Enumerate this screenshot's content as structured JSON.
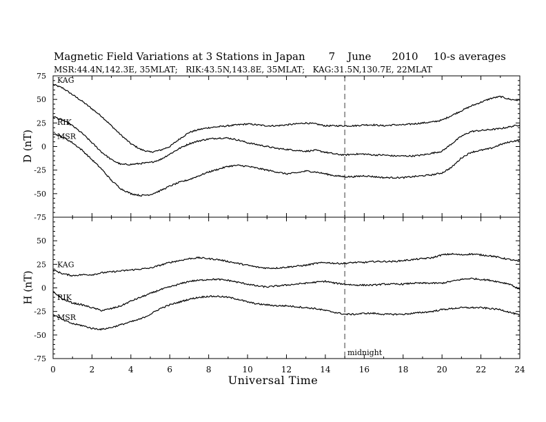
{
  "title": {
    "main": "Magnetic Field Variations at 3 Stations in Japan",
    "date_day": "7",
    "date_month": "June",
    "date_year": "2010",
    "averaging": "10-s averages"
  },
  "subtitle": "MSR:44.4N,142.3E, 35MLAT;   RIK:43.5N,143.8E, 35MLAT;   KAG:31.5N,130.7E, 22MLAT",
  "xlabel": "Universal Time",
  "annotation": "midnight",
  "chart_data": [
    {
      "type": "line",
      "panel": "D",
      "ylabel": "D (nT)",
      "ylim": [
        -75,
        75
      ],
      "yticks": [
        -75,
        -50,
        -25,
        0,
        25,
        50,
        75
      ],
      "xlim": [
        0,
        24
      ],
      "xticks": [
        0,
        2,
        4,
        6,
        8,
        10,
        12,
        14,
        16,
        18,
        20,
        22,
        24
      ],
      "vline_x": 15,
      "x": [
        0,
        0.5,
        1,
        1.5,
        2,
        2.5,
        3,
        3.5,
        4,
        4.5,
        5,
        5.5,
        6,
        6.5,
        7,
        7.5,
        8,
        8.5,
        9,
        9.5,
        10,
        10.5,
        11,
        11.5,
        12,
        12.5,
        13,
        13.5,
        14,
        14.5,
        15,
        15.5,
        16,
        16.5,
        17,
        17.5,
        18,
        18.5,
        19,
        19.5,
        20,
        20.5,
        21,
        21.5,
        22,
        22.5,
        23,
        23.5,
        24
      ],
      "series": [
        {
          "name": "KAG",
          "values": [
            66,
            62,
            55,
            48,
            40,
            32,
            22,
            12,
            3,
            -3,
            -6,
            -4,
            0,
            8,
            15,
            18,
            20,
            21,
            22,
            23,
            24,
            23,
            22,
            22,
            23,
            24,
            25,
            24,
            22,
            22,
            22,
            22,
            23,
            23,
            22,
            23,
            23,
            24,
            25,
            26,
            28,
            33,
            38,
            43,
            47,
            51,
            53,
            50,
            49
          ]
        },
        {
          "name": "RIK",
          "values": [
            32,
            28,
            22,
            14,
            4,
            -6,
            -14,
            -19,
            -19,
            -18,
            -17,
            -14,
            -8,
            -2,
            3,
            6,
            8,
            9,
            9,
            7,
            4,
            2,
            0,
            -2,
            -3,
            -4,
            -5,
            -4,
            -6,
            -8,
            -9,
            -8,
            -8,
            -9,
            -9,
            -10,
            -10,
            -10,
            -9,
            -7,
            -5,
            3,
            11,
            16,
            17,
            18,
            19,
            21,
            23
          ]
        },
        {
          "name": "MSR",
          "values": [
            14,
            10,
            4,
            -4,
            -14,
            -24,
            -36,
            -45,
            -50,
            -52,
            -51,
            -47,
            -42,
            -38,
            -35,
            -31,
            -27,
            -24,
            -21,
            -20,
            -21,
            -23,
            -25,
            -27,
            -29,
            -28,
            -26,
            -27,
            -29,
            -31,
            -32,
            -32,
            -31,
            -32,
            -33,
            -33,
            -33,
            -32,
            -31,
            -30,
            -28,
            -22,
            -12,
            -6,
            -4,
            -2,
            2,
            5,
            7
          ]
        }
      ]
    },
    {
      "type": "line",
      "panel": "H",
      "ylabel": "H (nT)",
      "ylim": [
        -75,
        75
      ],
      "yticks": [
        -75,
        -50,
        -25,
        0,
        25,
        50,
        75
      ],
      "xlim": [
        0,
        24
      ],
      "xticks": [
        0,
        2,
        4,
        6,
        8,
        10,
        12,
        14,
        16,
        18,
        20,
        22,
        24
      ],
      "vline_x": 15,
      "x": [
        0,
        0.5,
        1,
        1.5,
        2,
        2.5,
        3,
        3.5,
        4,
        4.5,
        5,
        5.5,
        6,
        6.5,
        7,
        7.5,
        8,
        8.5,
        9,
        9.5,
        10,
        10.5,
        11,
        11.5,
        12,
        12.5,
        13,
        13.5,
        14,
        14.5,
        15,
        15.5,
        16,
        16.5,
        17,
        17.5,
        18,
        18.5,
        19,
        19.5,
        20,
        20.5,
        21,
        21.5,
        22,
        22.5,
        23,
        23.5,
        24
      ],
      "series": [
        {
          "name": "KAG",
          "values": [
            19,
            15,
            13,
            14,
            14,
            16,
            17,
            18,
            19,
            20,
            21,
            24,
            27,
            29,
            31,
            32,
            31,
            30,
            28,
            26,
            24,
            22,
            21,
            21,
            22,
            23,
            24,
            26,
            27,
            26,
            26,
            27,
            27,
            28,
            28,
            28,
            29,
            30,
            31,
            32,
            35,
            36,
            35,
            36,
            35,
            34,
            32,
            30,
            28
          ]
        },
        {
          "name": "RIK",
          "values": [
            -4,
            -12,
            -16,
            -18,
            -21,
            -24,
            -22,
            -19,
            -14,
            -10,
            -6,
            -2,
            1,
            4,
            7,
            8,
            9,
            9,
            8,
            6,
            4,
            2,
            1,
            2,
            3,
            4,
            5,
            6,
            7,
            5,
            4,
            3,
            3,
            3,
            4,
            4,
            4,
            5,
            5,
            5,
            5,
            7,
            9,
            10,
            9,
            8,
            6,
            4,
            -2
          ]
        },
        {
          "name": "MSR",
          "values": [
            -28,
            -34,
            -38,
            -40,
            -43,
            -44,
            -42,
            -39,
            -36,
            -33,
            -28,
            -22,
            -18,
            -15,
            -12,
            -10,
            -9,
            -9,
            -10,
            -12,
            -15,
            -17,
            -18,
            -19,
            -19,
            -20,
            -21,
            -22,
            -24,
            -26,
            -28,
            -28,
            -27,
            -27,
            -28,
            -28,
            -28,
            -27,
            -26,
            -25,
            -23,
            -22,
            -21,
            -21,
            -21,
            -22,
            -23,
            -26,
            -29
          ]
        }
      ]
    }
  ]
}
